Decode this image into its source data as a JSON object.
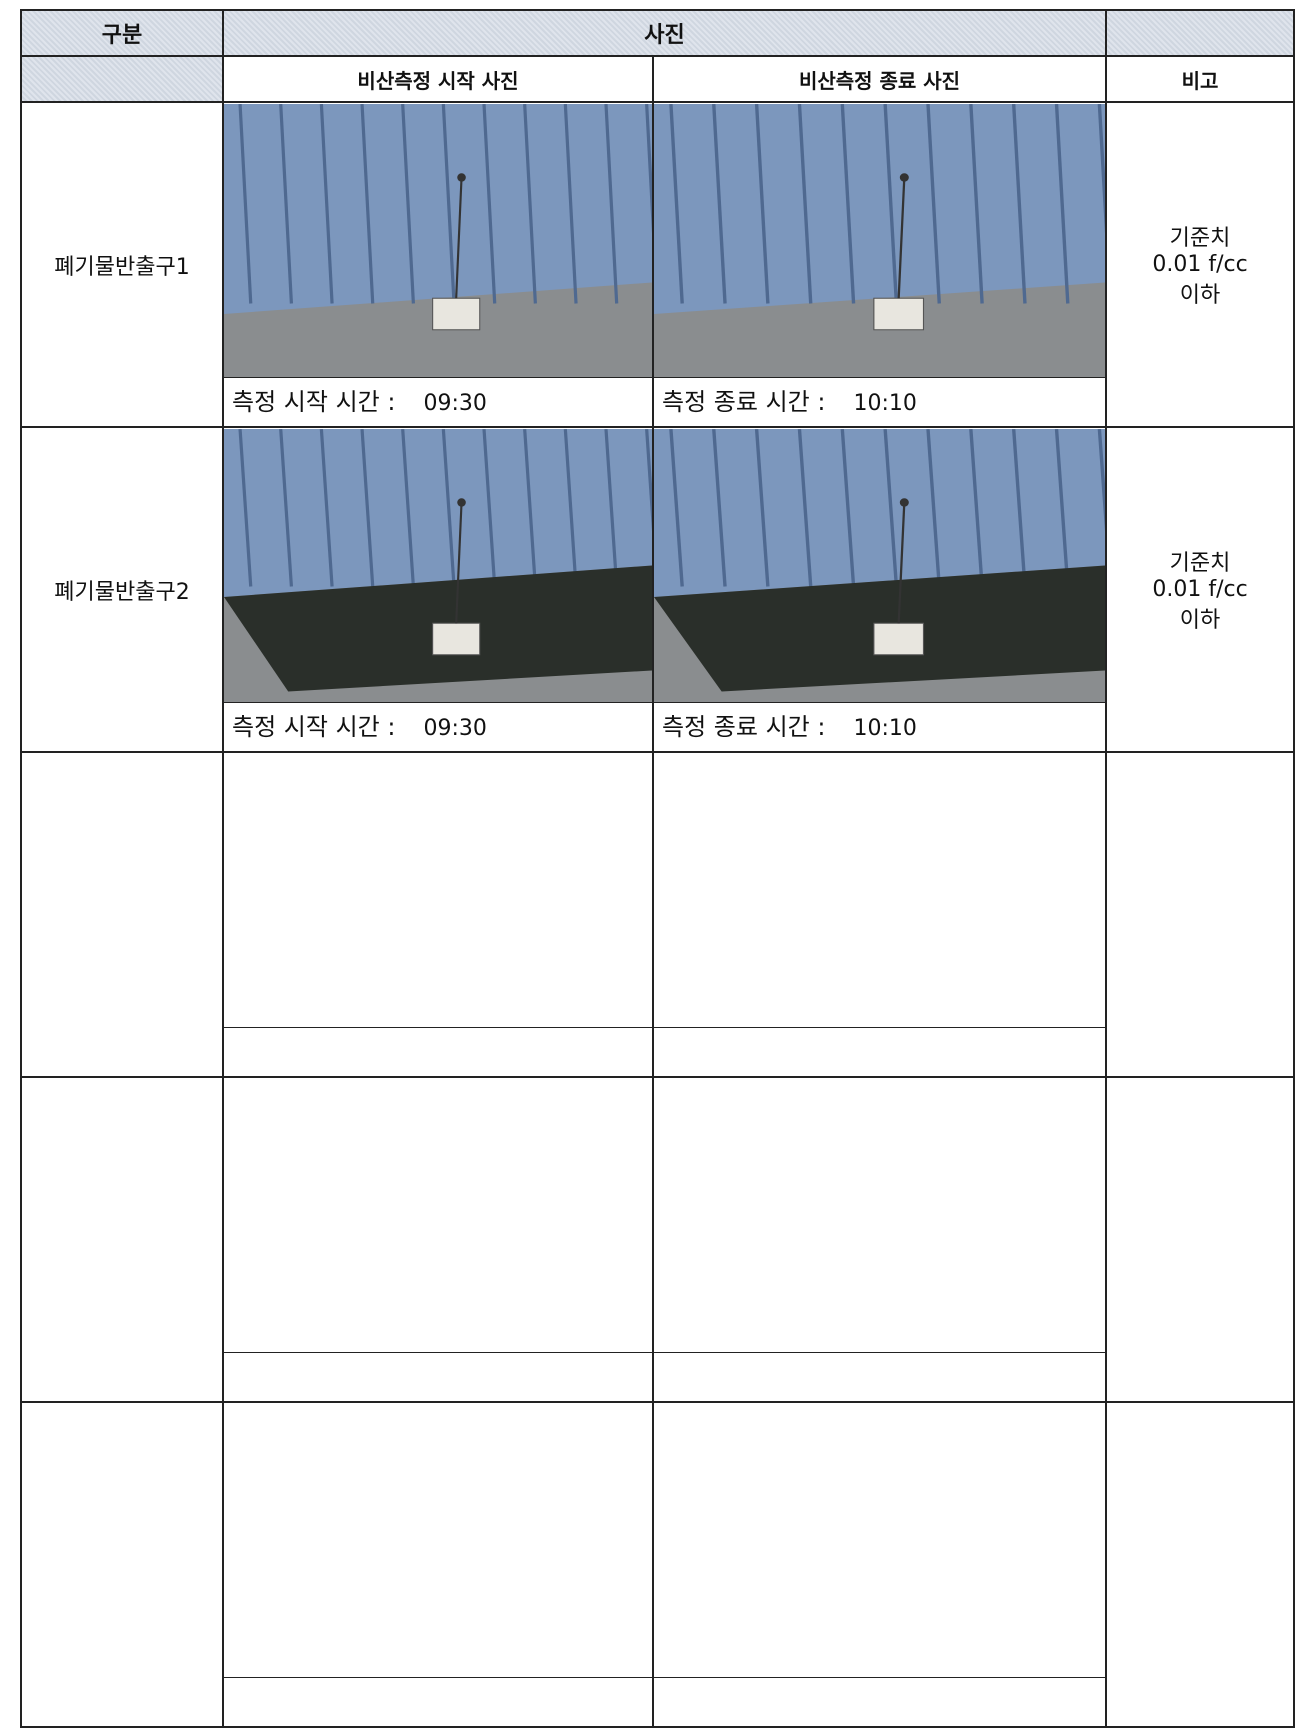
{
  "header": {
    "category": "구분",
    "photo": "사진",
    "start_photo": "비산측정 시작 사진",
    "end_photo": "비산측정 종료 사진",
    "remarks": "비고"
  },
  "rows": [
    {
      "location": "폐기물반출구1",
      "start_caption": "측정 시작 시간 :",
      "start_time": "09:30",
      "end_caption": "측정 종료 시간 :",
      "end_time": "10:10",
      "remarks": [
        "기준치",
        "0.01 f/cc",
        "이하"
      ]
    },
    {
      "location": "폐기물반출구2",
      "start_caption": "측정 시작 시간 :",
      "start_time": "09:30",
      "end_caption": "측정 종료 시간 :",
      "end_time": "10:10",
      "remarks": [
        "기준치",
        "0.01 f/cc",
        "이하"
      ]
    }
  ]
}
